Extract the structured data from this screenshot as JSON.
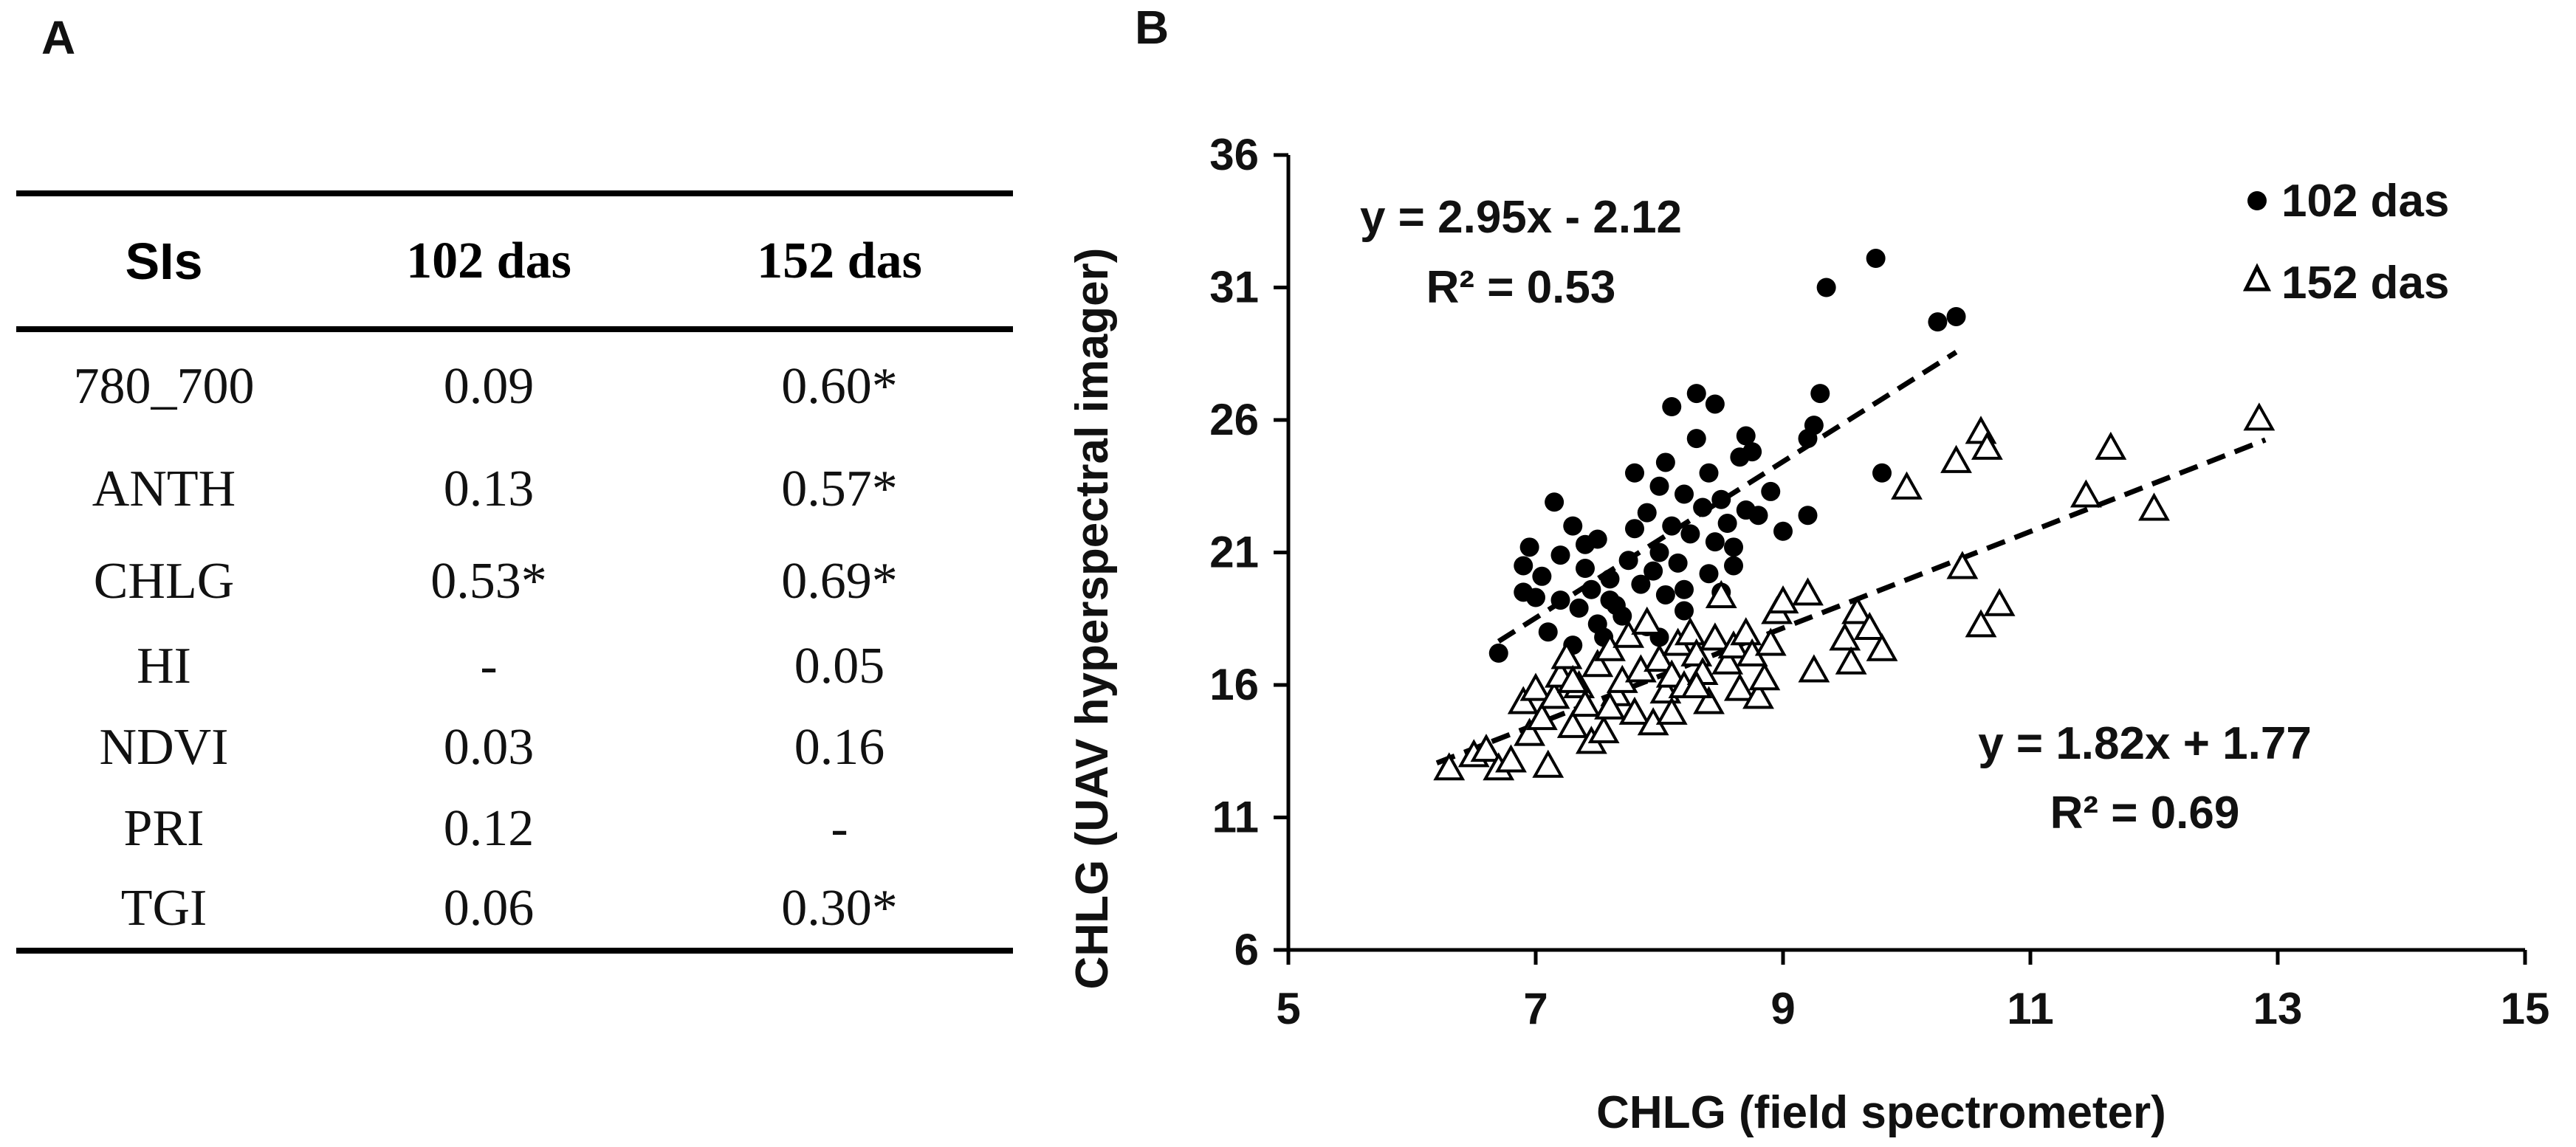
{
  "panels": {
    "a": "A",
    "b": "B"
  },
  "table": {
    "headers": [
      "SIs",
      "102 das",
      "152 das"
    ],
    "rows": [
      [
        "780_700",
        "0.09",
        "0.60*"
      ],
      [
        "ANTH",
        "0.13",
        "0.57*"
      ],
      [
        "CHLG",
        "0.53*",
        "0.69*"
      ],
      [
        "HI",
        "-",
        "0.05"
      ],
      [
        "NDVI",
        "0.03",
        "0.16"
      ],
      [
        "PRI",
        "0.12",
        "-"
      ],
      [
        "TGI",
        "0.06",
        "0.30*"
      ]
    ]
  },
  "chart_data": {
    "type": "scatter",
    "xlabel": "CHLG (field spectrometer)",
    "ylabel": "CHLG (UAV hyperspectral imager)",
    "xlim": [
      5,
      15
    ],
    "ylim": [
      6,
      36
    ],
    "xticks": [
      "5",
      "7",
      "9",
      "11",
      "13",
      "15"
    ],
    "yticks": [
      "6",
      "11",
      "16",
      "21",
      "26",
      "31",
      "36"
    ],
    "series": [
      {
        "name": "102 das",
        "marker": "filled-circle",
        "color": "#000000",
        "trendline": {
          "slope": 2.95,
          "intercept": -2.12,
          "x_range": [
            6.7,
            10.4
          ]
        },
        "equation": "y = 2.95x - 2.12",
        "r2": "R² = 0.53",
        "points": [
          [
            6.7,
            17.2
          ],
          [
            6.9,
            19.5
          ],
          [
            6.9,
            20.5
          ],
          [
            6.95,
            21.2
          ],
          [
            7.0,
            19.3
          ],
          [
            7.05,
            20.1
          ],
          [
            7.1,
            18.0
          ],
          [
            7.15,
            22.9
          ],
          [
            7.2,
            20.9
          ],
          [
            7.2,
            19.2
          ],
          [
            7.3,
            17.5
          ],
          [
            7.3,
            22.0
          ],
          [
            7.35,
            18.9
          ],
          [
            7.4,
            20.4
          ],
          [
            7.45,
            19.6
          ],
          [
            7.5,
            18.3
          ],
          [
            7.5,
            21.5
          ],
          [
            7.55,
            17.8
          ],
          [
            7.6,
            20.0
          ],
          [
            7.65,
            19.0
          ],
          [
            7.7,
            18.6
          ],
          [
            7.75,
            20.7
          ],
          [
            7.8,
            24.0
          ],
          [
            7.8,
            21.9
          ],
          [
            7.85,
            19.8
          ],
          [
            7.9,
            18.2
          ],
          [
            7.9,
            22.5
          ],
          [
            7.95,
            20.3
          ],
          [
            8.0,
            23.5
          ],
          [
            8.0,
            21.0
          ],
          [
            8.05,
            19.4
          ],
          [
            8.05,
            24.4
          ],
          [
            8.1,
            26.5
          ],
          [
            8.1,
            22.0
          ],
          [
            8.15,
            20.6
          ],
          [
            8.2,
            18.8
          ],
          [
            8.2,
            23.2
          ],
          [
            8.25,
            21.7
          ],
          [
            8.3,
            27.0
          ],
          [
            8.3,
            25.3
          ],
          [
            8.35,
            22.7
          ],
          [
            8.4,
            20.2
          ],
          [
            8.4,
            24.0
          ],
          [
            8.45,
            26.6
          ],
          [
            8.45,
            21.4
          ],
          [
            8.5,
            23.0
          ],
          [
            8.5,
            19.5
          ],
          [
            8.55,
            22.1
          ],
          [
            8.6,
            21.2
          ],
          [
            8.6,
            20.5
          ],
          [
            8.65,
            24.6
          ],
          [
            8.7,
            25.4
          ],
          [
            8.7,
            22.6
          ],
          [
            8.75,
            24.8
          ],
          [
            8.8,
            22.4
          ],
          [
            8.9,
            23.3
          ],
          [
            9.2,
            25.3
          ],
          [
            9.2,
            22.4
          ],
          [
            9.25,
            25.8
          ],
          [
            9.3,
            27.0
          ],
          [
            9.35,
            31.0
          ],
          [
            9.75,
            32.1
          ],
          [
            9.8,
            24.0
          ],
          [
            10.25,
            29.7
          ],
          [
            10.4,
            29.9
          ],
          [
            7.4,
            21.3
          ],
          [
            7.6,
            19.2
          ],
          [
            8.0,
            17.8
          ],
          [
            8.2,
            19.6
          ],
          [
            9.0,
            21.8
          ]
        ]
      },
      {
        "name": "152 das",
        "marker": "open-triangle",
        "color": "#000000",
        "trendline": {
          "slope": 1.82,
          "intercept": 1.77,
          "x_range": [
            6.2,
            12.9
          ]
        },
        "equation": "y = 1.82x + 1.77",
        "r2": "R² = 0.69",
        "points": [
          [
            6.3,
            12.9
          ],
          [
            6.5,
            13.4
          ],
          [
            6.6,
            13.6
          ],
          [
            6.7,
            12.9
          ],
          [
            6.8,
            13.2
          ],
          [
            6.9,
            15.4
          ],
          [
            6.95,
            14.2
          ],
          [
            7.0,
            15.9
          ],
          [
            7.05,
            14.8
          ],
          [
            7.1,
            13.0
          ],
          [
            7.15,
            15.6
          ],
          [
            7.2,
            16.4
          ],
          [
            7.25,
            17.1
          ],
          [
            7.3,
            14.5
          ],
          [
            7.35,
            16.0
          ],
          [
            7.4,
            15.3
          ],
          [
            7.45,
            13.9
          ],
          [
            7.5,
            16.8
          ],
          [
            7.55,
            14.3
          ],
          [
            7.6,
            17.4
          ],
          [
            7.65,
            15.7
          ],
          [
            7.7,
            16.2
          ],
          [
            7.75,
            17.9
          ],
          [
            7.8,
            15.0
          ],
          [
            7.85,
            16.6
          ],
          [
            7.9,
            18.4
          ],
          [
            7.95,
            14.6
          ],
          [
            8.0,
            17.0
          ],
          [
            8.05,
            15.8
          ],
          [
            8.1,
            16.4
          ],
          [
            8.15,
            17.6
          ],
          [
            8.2,
            16.0
          ],
          [
            8.25,
            18.0
          ],
          [
            8.3,
            17.2
          ],
          [
            8.35,
            16.5
          ],
          [
            8.4,
            15.4
          ],
          [
            8.45,
            17.8
          ],
          [
            8.5,
            19.4
          ],
          [
            8.55,
            16.9
          ],
          [
            8.6,
            17.5
          ],
          [
            8.65,
            15.9
          ],
          [
            8.7,
            18.0
          ],
          [
            8.75,
            17.2
          ],
          [
            8.8,
            15.6
          ],
          [
            8.85,
            16.3
          ],
          [
            8.9,
            17.6
          ],
          [
            8.95,
            18.8
          ],
          [
            9.0,
            19.2
          ],
          [
            9.2,
            19.5
          ],
          [
            9.25,
            16.6
          ],
          [
            9.5,
            17.8
          ],
          [
            9.55,
            16.9
          ],
          [
            9.6,
            18.8
          ],
          [
            9.7,
            18.2
          ],
          [
            9.8,
            17.4
          ],
          [
            10.0,
            23.5
          ],
          [
            10.4,
            24.5
          ],
          [
            10.45,
            20.5
          ],
          [
            10.6,
            18.3
          ],
          [
            10.6,
            25.6
          ],
          [
            10.65,
            25.0
          ],
          [
            10.75,
            19.1
          ],
          [
            11.45,
            23.2
          ],
          [
            11.65,
            25.0
          ],
          [
            12.0,
            22.7
          ],
          [
            12.85,
            26.1
          ],
          [
            7.3,
            16.2
          ],
          [
            7.6,
            15.2
          ],
          [
            8.1,
            15.0
          ],
          [
            8.3,
            16.0
          ]
        ]
      }
    ],
    "legend": [
      "102 das",
      "152 das"
    ]
  }
}
